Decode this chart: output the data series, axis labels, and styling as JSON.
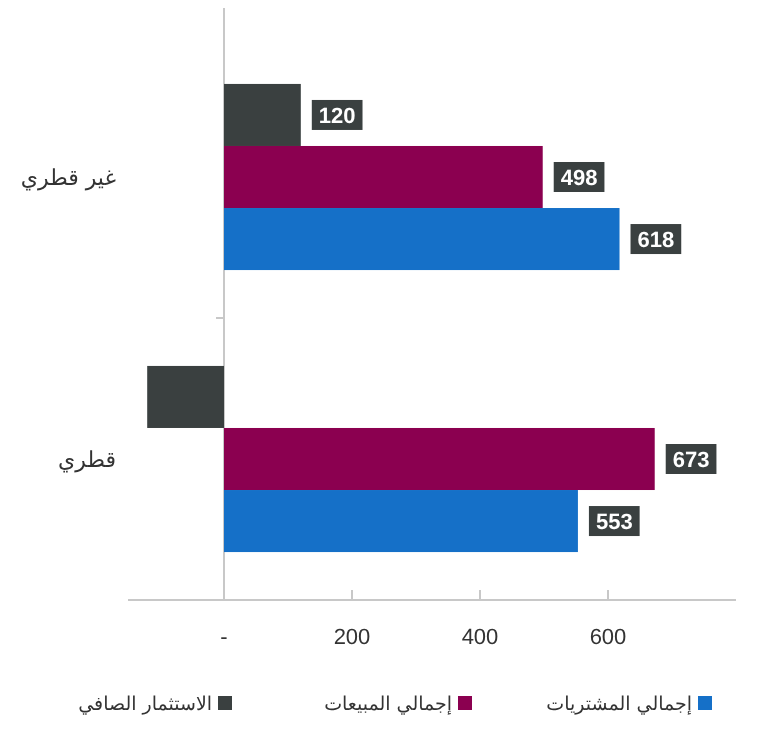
{
  "chart_data": {
    "type": "bar",
    "orientation": "horizontal",
    "categories": [
      "غير قطري",
      "قطري"
    ],
    "series": [
      {
        "name": "الاستثمار الصافي",
        "color": "#3a4040",
        "values": [
          120,
          -120
        ],
        "value_labels": [
          "120",
          null
        ]
      },
      {
        "name": "إجمالي المبيعات",
        "color": "#8b0050",
        "values": [
          498,
          673
        ],
        "value_labels": [
          "498",
          "673"
        ]
      },
      {
        "name": "إجمالي المشتريات",
        "color": "#1570c8",
        "values": [
          618,
          553
        ],
        "value_labels": [
          "618",
          "553"
        ]
      }
    ],
    "xlim": [
      -150,
      800
    ],
    "xticks": [
      {
        "value": 0,
        "label": "-"
      },
      200,
      400,
      600
    ],
    "legend": "bottom"
  }
}
